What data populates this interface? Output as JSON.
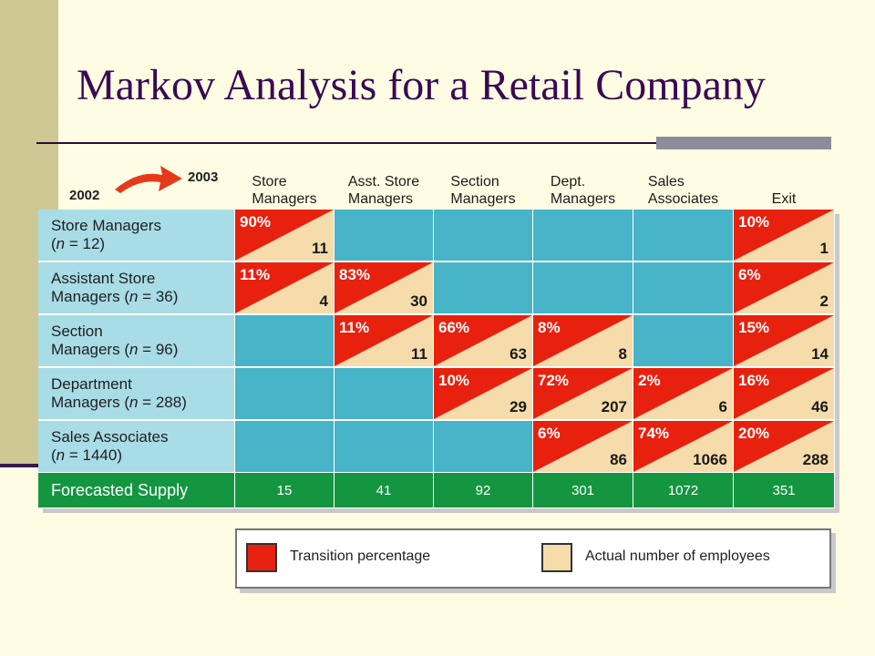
{
  "slide": {
    "title": "Markov Analysis for a Retail Company"
  },
  "years": {
    "from": "2002",
    "to": "2003"
  },
  "columns": [
    {
      "line1": "Store",
      "line2": "Managers"
    },
    {
      "line1": "Asst. Store",
      "line2": "Managers"
    },
    {
      "line1": "Section",
      "line2": "Managers"
    },
    {
      "line1": "Dept.",
      "line2": "Managers"
    },
    {
      "line1": "Sales",
      "line2": "Associates"
    },
    {
      "line1": "",
      "line2": "Exit"
    }
  ],
  "rows": [
    {
      "line1": "Store Managers",
      "line2_pre": "(",
      "n_var": "n",
      "line2_post": " = 12)",
      "cells": [
        {
          "pct": "90%",
          "count": "11"
        },
        null,
        null,
        null,
        null,
        {
          "pct": "10%",
          "count": "1"
        }
      ]
    },
    {
      "line1": "Assistant Store",
      "line2_pre": "Managers (",
      "n_var": "n",
      "line2_post": " = 36)",
      "cells": [
        {
          "pct": "11%",
          "count": "4"
        },
        {
          "pct": "83%",
          "count": "30"
        },
        null,
        null,
        null,
        {
          "pct": "6%",
          "count": "2"
        }
      ]
    },
    {
      "line1": "Section",
      "line2_pre": "Managers (",
      "n_var": "n",
      "line2_post": " = 96)",
      "cells": [
        null,
        {
          "pct": "11%",
          "count": "11"
        },
        {
          "pct": "66%",
          "count": "63"
        },
        {
          "pct": "8%",
          "count": "8"
        },
        null,
        {
          "pct": "15%",
          "count": "14"
        }
      ]
    },
    {
      "line1": "Department",
      "line2_pre": "Managers (",
      "n_var": "n",
      "line2_post": " = 288)",
      "cells": [
        null,
        null,
        {
          "pct": "10%",
          "count": "29"
        },
        {
          "pct": "72%",
          "count": "207"
        },
        {
          "pct": "2%",
          "count": "6"
        },
        {
          "pct": "16%",
          "count": "46"
        }
      ]
    },
    {
      "line1": "Sales Associates",
      "line2_pre": "(",
      "n_var": "n",
      "line2_post": " = 1440)",
      "cells": [
        null,
        null,
        null,
        {
          "pct": "6%",
          "count": "86"
        },
        {
          "pct": "74%",
          "count": "1066"
        },
        {
          "pct": "20%",
          "count": "288"
        }
      ]
    }
  ],
  "supply": {
    "label": "Forecasted Supply",
    "values": [
      "15",
      "41",
      "92",
      "301",
      "1072",
      "351"
    ]
  },
  "legend": {
    "transition": "Transition percentage",
    "actual": "Actual number of employees"
  },
  "colors": {
    "transition": "#e8200e",
    "actual": "#f5dcaa",
    "empty_cell": "#48b4c8",
    "row_label": "#a8dce6",
    "supply_row": "#149641",
    "title": "#3a0a54"
  }
}
